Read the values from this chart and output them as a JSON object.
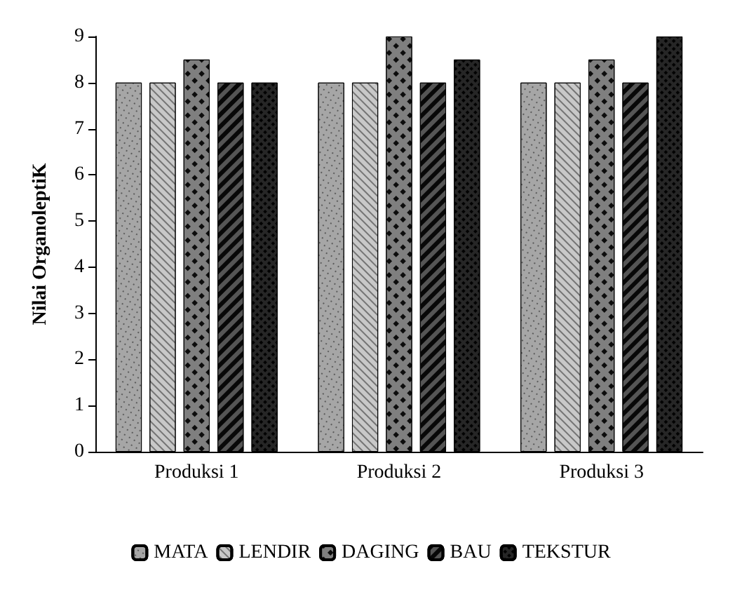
{
  "chart_data": {
    "type": "bar",
    "ylabel": "Nilai OrganoleptiK",
    "categories": [
      "Produksi 1",
      "Produksi 2",
      "Produksi 3"
    ],
    "series": [
      {
        "name": "MATA",
        "color": "#a6a6a6",
        "values": [
          8,
          8,
          8
        ]
      },
      {
        "name": "LENDIR",
        "color": "#c8c8c8",
        "values": [
          8,
          8,
          8
        ]
      },
      {
        "name": "DAGING",
        "color": "#7f7f7f",
        "values": [
          8.5,
          9,
          8.5
        ]
      },
      {
        "name": "BAU",
        "color": "#555555",
        "values": [
          8,
          8,
          8
        ]
      },
      {
        "name": "TEKSTUR",
        "color": "#262626",
        "values": [
          8,
          8.5,
          9
        ]
      }
    ],
    "ylim": [
      0,
      9
    ],
    "yticks": [
      0,
      1,
      2,
      3,
      4,
      5,
      6,
      7,
      8,
      9
    ],
    "grid": false,
    "legend": "bottom"
  }
}
